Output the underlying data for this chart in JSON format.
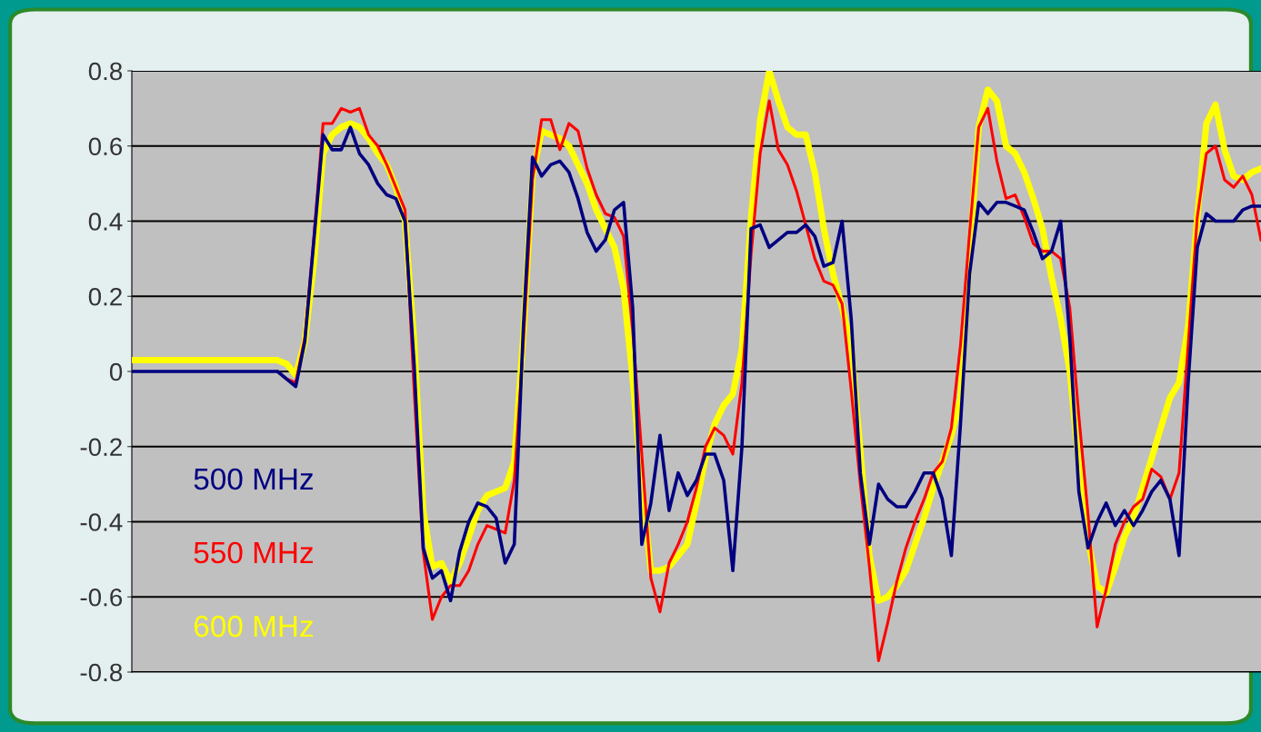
{
  "chart_data": {
    "type": "line",
    "ylim": [
      -0.8,
      0.8
    ],
    "yticks": [
      -0.8,
      -0.6,
      -0.4,
      -0.2,
      0,
      0.2,
      0.4,
      0.6,
      0.8
    ],
    "tick_labels": "y",
    "grid": "y",
    "legend": "bottom left",
    "categories": [
      null,
      null,
      null,
      null,
      null,
      null,
      null,
      null,
      null,
      null,
      null,
      null,
      null,
      null,
      null,
      null,
      null,
      null,
      null,
      null,
      null,
      null,
      null,
      null,
      null,
      null,
      null,
      null,
      null,
      null,
      null,
      null,
      null,
      null,
      null,
      null,
      null,
      null,
      null,
      null,
      null,
      null,
      null,
      null,
      null,
      null,
      null,
      null,
      null,
      null,
      null,
      null,
      null,
      null,
      null,
      null,
      null,
      null,
      null,
      null,
      null,
      null,
      null,
      null,
      null,
      null,
      null,
      null,
      null,
      null,
      null,
      null,
      null,
      null,
      null,
      null,
      null,
      null,
      null,
      null,
      null,
      null,
      null,
      null,
      null,
      null,
      null,
      null,
      null,
      null,
      null,
      null,
      null,
      null,
      null,
      null,
      null,
      null,
      null,
      null,
      null,
      null,
      null,
      null,
      null,
      null,
      null,
      null,
      null,
      null,
      null,
      null,
      null,
      null,
      null,
      null,
      null,
      null,
      null,
      null,
      null,
      null,
      null,
      null,
      null
    ],
    "series": [
      {
        "name": "500 MHz",
        "color": "#000080",
        "values": [
          0,
          0,
          0,
          0,
          0,
          0,
          0,
          0,
          0,
          0,
          0,
          0,
          0,
          0,
          0,
          0,
          0,
          -0.02,
          -0.04,
          0.08,
          0.35,
          0.63,
          0.59,
          0.59,
          0.65,
          0.58,
          0.55,
          0.5,
          0.47,
          0.46,
          0.4,
          0.02,
          -0.47,
          -0.55,
          -0.53,
          -0.61,
          -0.48,
          -0.4,
          -0.35,
          -0.36,
          -0.39,
          -0.51,
          -0.46,
          0.12,
          0.57,
          0.52,
          0.55,
          0.56,
          0.53,
          0.46,
          0.37,
          0.32,
          0.35,
          0.43,
          0.45,
          0.17,
          -0.46,
          -0.35,
          -0.17,
          -0.37,
          -0.27,
          -0.33,
          -0.29,
          -0.22,
          -0.22,
          -0.29,
          -0.53,
          -0.2,
          0.38,
          0.39,
          0.33,
          0.35,
          0.37,
          0.37,
          0.39,
          0.36,
          0.28,
          0.29,
          0.4,
          0.14,
          -0.27,
          -0.46,
          -0.3,
          -0.34,
          -0.36,
          -0.36,
          -0.32,
          -0.27,
          -0.27,
          -0.34,
          -0.49,
          -0.14,
          0.26,
          0.45,
          0.42,
          0.45,
          0.45,
          0.44,
          0.43,
          0.37,
          0.3,
          0.32,
          0.4,
          0.09,
          -0.32,
          -0.47,
          -0.4,
          -0.35,
          -0.41,
          -0.37,
          -0.41,
          -0.37,
          -0.32,
          -0.29,
          -0.34,
          -0.49,
          -0.03,
          0.33,
          0.42,
          0.4,
          0.4,
          0.4,
          0.43,
          0.44,
          0.44
        ]
      },
      {
        "name": "550 MHz",
        "color": "#ff0000",
        "values": [
          null,
          null,
          null,
          null,
          null,
          null,
          null,
          null,
          null,
          null,
          null,
          null,
          null,
          null,
          null,
          null,
          0,
          -0.02,
          -0.03,
          0.09,
          0.36,
          0.66,
          0.66,
          0.7,
          0.69,
          0.7,
          0.63,
          0.6,
          0.55,
          0.49,
          0.43,
          -0.05,
          -0.48,
          -0.66,
          -0.6,
          -0.57,
          -0.57,
          -0.53,
          -0.46,
          -0.41,
          -0.42,
          -0.43,
          -0.29,
          0.08,
          0.51,
          0.67,
          0.67,
          0.59,
          0.66,
          0.64,
          0.54,
          0.47,
          0.42,
          0.41,
          0.36,
          0.11,
          -0.22,
          -0.55,
          -0.64,
          -0.51,
          -0.46,
          -0.4,
          -0.31,
          -0.2,
          -0.15,
          -0.17,
          -0.22,
          -0.03,
          0.31,
          0.58,
          0.72,
          0.59,
          0.55,
          0.48,
          0.39,
          0.3,
          0.24,
          0.23,
          0.18,
          -0.05,
          -0.3,
          -0.52,
          -0.77,
          -0.67,
          -0.56,
          -0.47,
          -0.4,
          -0.34,
          -0.27,
          -0.24,
          -0.15,
          0.07,
          0.37,
          0.65,
          0.7,
          0.56,
          0.46,
          0.47,
          0.41,
          0.34,
          0.32,
          0.32,
          0.3,
          0.17,
          -0.12,
          -0.38,
          -0.68,
          -0.58,
          -0.46,
          -0.4,
          -0.36,
          -0.34,
          -0.26,
          -0.28,
          -0.34,
          -0.27,
          0.07,
          0.41,
          0.58,
          0.6,
          0.51,
          0.49,
          0.52,
          0.47,
          0.35
        ]
      },
      {
        "name": "600 MHz",
        "color": "#ffff00",
        "values": [
          0.03,
          0.03,
          0.03,
          0.03,
          0.03,
          0.03,
          0.03,
          0.03,
          0.03,
          0.03,
          0.03,
          0.03,
          0.03,
          0.03,
          0.03,
          0.03,
          0.03,
          0.02,
          -0.01,
          0.08,
          0.29,
          0.58,
          0.63,
          0.65,
          0.66,
          0.65,
          0.62,
          0.58,
          0.55,
          0.49,
          0.4,
          0.08,
          -0.37,
          -0.52,
          -0.51,
          -0.56,
          -0.51,
          -0.44,
          -0.37,
          -0.33,
          -0.32,
          -0.31,
          -0.24,
          0.1,
          0.52,
          0.64,
          0.63,
          0.62,
          0.6,
          0.55,
          0.5,
          0.43,
          0.38,
          0.33,
          0.22,
          -0.02,
          -0.3,
          -0.53,
          -0.53,
          -0.52,
          -0.49,
          -0.46,
          -0.35,
          -0.23,
          -0.14,
          -0.09,
          -0.06,
          0.06,
          0.41,
          0.67,
          0.8,
          0.72,
          0.65,
          0.63,
          0.63,
          0.53,
          0.38,
          0.26,
          0.17,
          0.07,
          -0.21,
          -0.49,
          -0.61,
          -0.6,
          -0.57,
          -0.53,
          -0.46,
          -0.39,
          -0.31,
          -0.24,
          -0.17,
          -0.07,
          0.31,
          0.65,
          0.75,
          0.72,
          0.6,
          0.58,
          0.53,
          0.46,
          0.38,
          0.25,
          0.14,
          0,
          -0.25,
          -0.45,
          -0.57,
          -0.59,
          -0.52,
          -0.44,
          -0.39,
          -0.31,
          -0.23,
          -0.15,
          -0.07,
          -0.03,
          0.12,
          0.41,
          0.66,
          0.71,
          0.59,
          0.52,
          0.51,
          0.53,
          0.54
        ]
      }
    ]
  }
}
